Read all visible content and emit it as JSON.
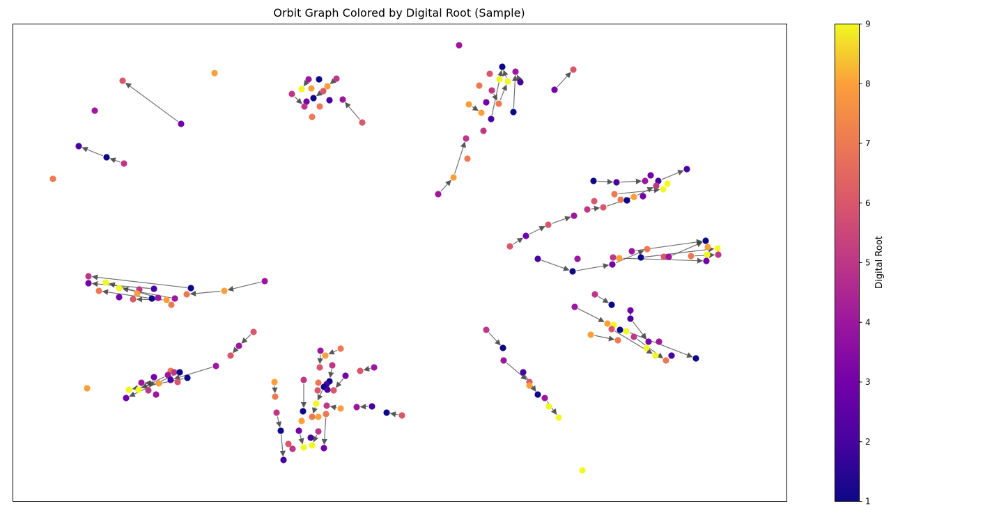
{
  "chart_data": {
    "type": "scatter",
    "title": "Orbit Graph Colored by Digital Root (Sample)",
    "xlabel": "",
    "ylabel": "",
    "axes_ticks_visible": false,
    "grid": false,
    "colormap": "plasma",
    "colorbar": {
      "label": "Digital Root",
      "min": 1,
      "max": 9,
      "ticks": [
        "1",
        "2",
        "3",
        "4",
        "5",
        "6",
        "7",
        "8",
        "9"
      ]
    },
    "point_size": "uniform",
    "edge_color": "#555555",
    "nodes": [
      [
        176,
        116,
        6
      ],
      [
        260,
        178,
        3
      ],
      [
        136,
        159,
        4
      ],
      [
        308,
        105,
        8
      ],
      [
        113,
        210,
        2
      ],
      [
        153,
        226,
        1
      ],
      [
        178,
        235,
        5
      ],
      [
        76,
        257,
        7
      ],
      [
        443,
        114,
        4
      ],
      [
        458,
        114,
        1
      ],
      [
        483,
        113,
        5
      ],
      [
        470,
        124,
        8
      ],
      [
        433,
        128,
        9
      ],
      [
        447,
        127,
        8
      ],
      [
        419,
        135,
        5
      ],
      [
        464,
        131,
        6
      ],
      [
        450,
        141,
        1
      ],
      [
        440,
        146,
        3
      ],
      [
        473,
        144,
        2
      ],
      [
        492,
        143,
        4
      ],
      [
        437,
        153,
        5
      ],
      [
        459,
        153,
        7
      ],
      [
        448,
        168,
        7
      ],
      [
        520,
        176,
        6
      ],
      [
        659,
        65,
        4
      ],
      [
        721,
        96,
        1
      ],
      [
        703,
        106,
        6
      ],
      [
        740,
        103,
        4
      ],
      [
        717,
        114,
        9
      ],
      [
        729,
        117,
        9
      ],
      [
        747,
        118,
        2
      ],
      [
        688,
        123,
        7
      ],
      [
        706,
        130,
        5
      ],
      [
        716,
        149,
        7
      ],
      [
        698,
        147,
        3
      ],
      [
        737,
        161,
        1
      ],
      [
        673,
        150,
        8
      ],
      [
        691,
        162,
        8
      ],
      [
        705,
        171,
        2
      ],
      [
        694,
        188,
        5
      ],
      [
        669,
        199,
        5
      ],
      [
        671,
        228,
        7
      ],
      [
        651,
        255,
        8
      ],
      [
        629,
        279,
        4
      ],
      [
        796,
        129,
        3
      ],
      [
        823,
        100,
        6
      ],
      [
        852,
        260,
        1
      ],
      [
        885,
        262,
        2
      ],
      [
        926,
        260,
        4
      ],
      [
        934,
        252,
        3
      ],
      [
        945,
        260,
        2
      ],
      [
        942,
        267,
        5
      ],
      [
        958,
        264,
        9
      ],
      [
        952,
        272,
        9
      ],
      [
        986,
        243,
        2
      ],
      [
        882,
        279,
        7
      ],
      [
        853,
        289,
        6
      ],
      [
        891,
        287,
        7
      ],
      [
        910,
        283,
        8
      ],
      [
        900,
        288,
        1
      ],
      [
        923,
        282,
        3
      ],
      [
        843,
        301,
        5
      ],
      [
        866,
        298,
        6
      ],
      [
        824,
        310,
        4
      ],
      [
        787,
        323,
        6
      ],
      [
        755,
        339,
        3
      ],
      [
        732,
        354,
        6
      ],
      [
        1013,
        346,
        1
      ],
      [
        1016,
        355,
        8
      ],
      [
        1030,
        357,
        9
      ],
      [
        1015,
        366,
        9
      ],
      [
        1031,
        366,
        5
      ],
      [
        1014,
        375,
        3
      ],
      [
        929,
        358,
        7
      ],
      [
        907,
        361,
        4
      ],
      [
        920,
        370,
        1
      ],
      [
        880,
        370,
        5
      ],
      [
        889,
        371,
        8
      ],
      [
        953,
        369,
        6
      ],
      [
        960,
        369,
        4
      ],
      [
        992,
        368,
        7
      ],
      [
        879,
        380,
        3
      ],
      [
        829,
        372,
        4
      ],
      [
        772,
        372,
        2
      ],
      [
        822,
        390,
        1
      ],
      [
        127,
        397,
        5
      ],
      [
        127,
        407,
        3
      ],
      [
        152,
        406,
        9
      ],
      [
        171,
        414,
        9
      ],
      [
        142,
        418,
        7
      ],
      [
        200,
        416,
        5
      ],
      [
        221,
        415,
        2
      ],
      [
        274,
        414,
        1
      ],
      [
        197,
        422,
        8
      ],
      [
        171,
        427,
        3
      ],
      [
        191,
        430,
        6
      ],
      [
        218,
        429,
        1
      ],
      [
        227,
        428,
        4
      ],
      [
        251,
        429,
        4
      ],
      [
        239,
        431,
        8
      ],
      [
        246,
        438,
        7
      ],
      [
        268,
        423,
        7
      ],
      [
        322,
        418,
        8
      ],
      [
        380,
        404,
        4
      ],
      [
        854,
        423,
        5
      ],
      [
        878,
        438,
        1
      ],
      [
        825,
        441,
        4
      ],
      [
        905,
        446,
        3
      ],
      [
        905,
        458,
        2
      ],
      [
        872,
        465,
        8
      ],
      [
        881,
        467,
        9
      ],
      [
        878,
        473,
        6
      ],
      [
        890,
        474,
        1
      ],
      [
        899,
        476,
        9
      ],
      [
        910,
        484,
        5
      ],
      [
        848,
        481,
        8
      ],
      [
        887,
        489,
        7
      ],
      [
        931,
        491,
        3
      ],
      [
        946,
        491,
        4
      ],
      [
        928,
        500,
        9
      ],
      [
        941,
        511,
        9
      ],
      [
        964,
        511,
        2
      ],
      [
        956,
        518,
        7
      ],
      [
        999,
        515,
        1
      ],
      [
        698,
        474,
        5
      ],
      [
        722,
        500,
        1
      ],
      [
        723,
        518,
        4
      ],
      [
        751,
        535,
        2
      ],
      [
        760,
        549,
        6
      ],
      [
        760,
        554,
        8
      ],
      [
        772,
        567,
        1
      ],
      [
        782,
        572,
        4
      ],
      [
        788,
        584,
        9
      ],
      [
        802,
        600,
        9
      ],
      [
        364,
        477,
        6
      ],
      [
        343,
        497,
        4
      ],
      [
        331,
        511,
        6
      ],
      [
        310,
        526,
        4
      ],
      [
        245,
        533,
        7
      ],
      [
        250,
        535,
        5
      ],
      [
        258,
        535,
        1
      ],
      [
        241,
        539,
        4
      ],
      [
        269,
        543,
        1
      ],
      [
        221,
        542,
        3
      ],
      [
        245,
        546,
        2
      ],
      [
        255,
        549,
        6
      ],
      [
        228,
        551,
        8
      ],
      [
        203,
        550,
        4
      ],
      [
        185,
        560,
        9
      ],
      [
        199,
        560,
        9
      ],
      [
        213,
        561,
        5
      ],
      [
        224,
        567,
        4
      ],
      [
        181,
        572,
        3
      ],
      [
        125,
        558,
        8
      ],
      [
        460,
        504,
        4
      ],
      [
        489,
        501,
        7
      ],
      [
        467,
        511,
        8
      ],
      [
        477,
        525,
        5
      ],
      [
        537,
        528,
        4
      ],
      [
        517,
        533,
        6
      ],
      [
        459,
        528,
        6
      ],
      [
        496,
        540,
        3
      ],
      [
        473,
        548,
        1
      ],
      [
        457,
        550,
        7
      ],
      [
        469,
        552,
        2
      ],
      [
        465,
        556,
        1
      ],
      [
        436,
        546,
        5
      ],
      [
        456,
        561,
        6
      ],
      [
        470,
        560,
        2
      ],
      [
        479,
        561,
        6
      ],
      [
        454,
        580,
        9
      ],
      [
        469,
        583,
        5
      ],
      [
        489,
        587,
        8
      ],
      [
        512,
        585,
        4
      ],
      [
        534,
        584,
        2
      ],
      [
        555,
        593,
        1
      ],
      [
        577,
        597,
        6
      ],
      [
        435,
        591,
        1
      ],
      [
        448,
        599,
        7
      ],
      [
        468,
        595,
        7
      ],
      [
        457,
        599,
        8
      ],
      [
        433,
        605,
        8
      ],
      [
        429,
        619,
        3
      ],
      [
        403,
        619,
        1
      ],
      [
        446,
        629,
        2
      ],
      [
        414,
        638,
        6
      ],
      [
        457,
        620,
        5
      ],
      [
        420,
        645,
        5
      ],
      [
        436,
        643,
        9
      ],
      [
        448,
        640,
        9
      ],
      [
        465,
        644,
        3
      ],
      [
        394,
        549,
        8
      ],
      [
        395,
        570,
        7
      ],
      [
        397,
        593,
        5
      ],
      [
        407,
        661,
        2
      ],
      [
        836,
        676,
        9
      ]
    ],
    "edges": [
      [
        260,
        178,
        176,
        116
      ],
      [
        178,
        235,
        153,
        226
      ],
      [
        153,
        226,
        113,
        210
      ],
      [
        520,
        176,
        492,
        143
      ],
      [
        483,
        113,
        470,
        124
      ],
      [
        443,
        114,
        433,
        128
      ],
      [
        464,
        131,
        450,
        141
      ],
      [
        419,
        135,
        437,
        153
      ],
      [
        629,
        279,
        651,
        255
      ],
      [
        651,
        255,
        669,
        199
      ],
      [
        673,
        150,
        691,
        162
      ],
      [
        706,
        130,
        716,
        149
      ],
      [
        716,
        149,
        729,
        117
      ],
      [
        729,
        117,
        721,
        96
      ],
      [
        747,
        118,
        740,
        103
      ],
      [
        737,
        161,
        740,
        103
      ],
      [
        705,
        171,
        721,
        96
      ],
      [
        796,
        129,
        823,
        100
      ],
      [
        732,
        354,
        755,
        339
      ],
      [
        755,
        339,
        787,
        323
      ],
      [
        787,
        323,
        824,
        310
      ],
      [
        843,
        301,
        866,
        298
      ],
      [
        866,
        298,
        910,
        283
      ],
      [
        910,
        283,
        942,
        267
      ],
      [
        852,
        260,
        885,
        262
      ],
      [
        885,
        262,
        926,
        260
      ],
      [
        882,
        279,
        952,
        272
      ],
      [
        945,
        260,
        986,
        243
      ],
      [
        772,
        372,
        822,
        390
      ],
      [
        822,
        390,
        879,
        380
      ],
      [
        879,
        380,
        929,
        358
      ],
      [
        907,
        361,
        1013,
        346
      ],
      [
        889,
        371,
        1014,
        375
      ],
      [
        920,
        370,
        1030,
        357
      ],
      [
        960,
        369,
        1013,
        346
      ],
      [
        992,
        368,
        1031,
        366
      ],
      [
        380,
        404,
        322,
        418
      ],
      [
        322,
        418,
        268,
        423
      ],
      [
        274,
        414,
        127,
        397
      ],
      [
        221,
        415,
        127,
        407
      ],
      [
        227,
        428,
        152,
        406
      ],
      [
        251,
        429,
        171,
        414
      ],
      [
        218,
        429,
        142,
        418
      ],
      [
        239,
        431,
        191,
        430
      ],
      [
        825,
        441,
        872,
        465
      ],
      [
        854,
        423,
        878,
        438
      ],
      [
        905,
        446,
        905,
        458
      ],
      [
        848,
        481,
        887,
        489
      ],
      [
        878,
        473,
        941,
        511
      ],
      [
        899,
        476,
        999,
        515
      ],
      [
        905,
        458,
        931,
        491
      ],
      [
        910,
        484,
        956,
        518
      ],
      [
        698,
        474,
        722,
        500
      ],
      [
        723,
        518,
        760,
        549
      ],
      [
        751,
        535,
        772,
        567
      ],
      [
        782,
        572,
        802,
        600
      ],
      [
        364,
        477,
        343,
        497
      ],
      [
        343,
        497,
        331,
        511
      ],
      [
        310,
        526,
        245,
        546
      ],
      [
        269,
        543,
        185,
        560
      ],
      [
        241,
        539,
        199,
        560
      ],
      [
        221,
        542,
        213,
        561
      ],
      [
        258,
        535,
        181,
        572
      ],
      [
        228,
        551,
        203,
        550
      ],
      [
        537,
        528,
        517,
        533
      ],
      [
        577,
        597,
        555,
        593
      ],
      [
        534,
        584,
        512,
        585
      ],
      [
        489,
        501,
        467,
        511
      ],
      [
        460,
        504,
        459,
        528
      ],
      [
        477,
        525,
        473,
        548
      ],
      [
        496,
        540,
        479,
        561
      ],
      [
        436,
        546,
        436,
        591
      ],
      [
        489,
        587,
        469,
        583
      ],
      [
        394,
        549,
        395,
        570
      ],
      [
        397,
        593,
        403,
        619
      ],
      [
        403,
        619,
        407,
        661
      ],
      [
        429,
        619,
        436,
        643
      ],
      [
        457,
        620,
        448,
        640
      ],
      [
        468,
        595,
        465,
        644
      ],
      [
        454,
        580,
        448,
        599
      ],
      [
        465,
        556,
        454,
        580
      ]
    ]
  }
}
